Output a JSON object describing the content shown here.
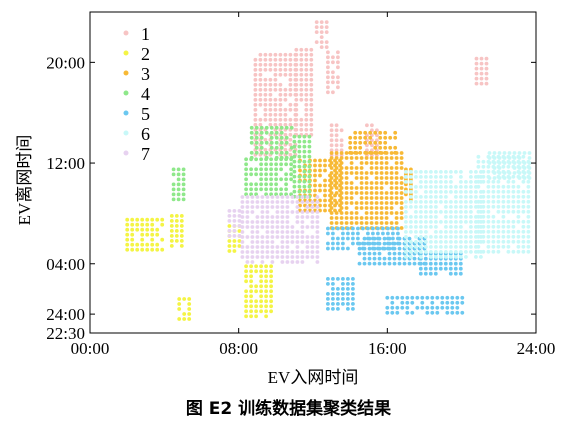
{
  "caption": "图 E2 训练数据集聚类结果",
  "chart_data": {
    "type": "scatter",
    "title": "",
    "xlabel": "EV入网时间",
    "ylabel": "EV离网时间",
    "x_unit": "hours",
    "y_unit": "hours",
    "xlim": [
      0,
      24
    ],
    "ylim": [
      -1.5,
      24
    ],
    "x_ticks": [
      {
        "value": 0,
        "label": "00:00"
      },
      {
        "value": 8,
        "label": "08:00"
      },
      {
        "value": 16,
        "label": "16:00"
      },
      {
        "value": 24,
        "label": "24:00"
      }
    ],
    "y_ticks": [
      {
        "value": 20,
        "label": "20:00"
      },
      {
        "value": 12,
        "label": "12:00"
      },
      {
        "value": 4,
        "label": "04:00"
      },
      {
        "value": 0,
        "label": "24:00"
      },
      {
        "value": -1.5,
        "label": "22:30"
      }
    ],
    "grid": false,
    "legend_position": "top-left",
    "series": [
      {
        "name": "1",
        "color": "#f7c4c4",
        "regions": [
          {
            "x": [
              8.9,
              11.1
            ],
            "y": [
              12.6,
              20.6
            ]
          },
          {
            "x": [
              11.1,
              12.1
            ],
            "y": [
              14.2,
              21.0
            ]
          },
          {
            "x": [
              12.2,
              13.0
            ],
            "y": [
              21.0,
              23.2
            ]
          },
          {
            "x": [
              12.8,
              13.5
            ],
            "y": [
              17.5,
              20.8
            ]
          },
          {
            "x": [
              13.0,
              13.6
            ],
            "y": [
              12.3,
              15.0
            ]
          },
          {
            "x": [
              14.9,
              15.5
            ],
            "y": [
              12.5,
              15.0
            ]
          },
          {
            "x": [
              20.8,
              21.6
            ],
            "y": [
              18.0,
              20.3
            ]
          }
        ]
      },
      {
        "name": "2",
        "color": "#f4f445",
        "regions": [
          {
            "x": [
              2.0,
              3.9
            ],
            "y": [
              4.8,
              7.5
            ]
          },
          {
            "x": [
              4.4,
              5.2
            ],
            "y": [
              5.3,
              7.8
            ]
          },
          {
            "x": [
              4.8,
              5.6
            ],
            "y": [
              -0.4,
              1.2
            ]
          },
          {
            "x": [
              7.5,
              8.2
            ],
            "y": [
              5.0,
              7.0
            ]
          },
          {
            "x": [
              8.4,
              9.8
            ],
            "y": [
              -0.2,
              3.8
            ]
          }
        ]
      },
      {
        "name": "3",
        "color": "#f7b935",
        "regions": [
          {
            "x": [
              11.3,
              13.6
            ],
            "y": [
              8.0,
              12.2
            ]
          },
          {
            "x": [
              13.0,
              17.0
            ],
            "y": [
              6.5,
              12.8
            ]
          },
          {
            "x": [
              14.0,
              16.6
            ],
            "y": [
              12.8,
              14.4
            ]
          },
          {
            "x": [
              17.0,
              17.4
            ],
            "y": [
              9.0,
              11.5
            ]
          }
        ]
      },
      {
        "name": "4",
        "color": "#8ee88a",
        "regions": [
          {
            "x": [
              8.4,
              10.9
            ],
            "y": [
              9.3,
              12.3
            ]
          },
          {
            "x": [
              8.7,
              11.1
            ],
            "y": [
              12.3,
              14.8
            ]
          },
          {
            "x": [
              11.0,
              12.0
            ],
            "y": [
              9.3,
              14.1
            ]
          },
          {
            "x": [
              4.5,
              5.1
            ],
            "y": [
              9.1,
              11.5
            ]
          }
        ]
      },
      {
        "name": "5",
        "color": "#6bc8f0",
        "regions": [
          {
            "x": [
              12.8,
              16.8
            ],
            "y": [
              5.0,
              6.8
            ]
          },
          {
            "x": [
              14.5,
              18.2
            ],
            "y": [
              3.8,
              6.0
            ]
          },
          {
            "x": [
              17.8,
              20.0
            ],
            "y": [
              3.2,
              4.8
            ]
          },
          {
            "x": [
              12.8,
              14.2
            ],
            "y": [
              0.1,
              2.8
            ]
          },
          {
            "x": [
              16.0,
              20.3
            ],
            "y": [
              0.0,
              1.3
            ]
          }
        ]
      },
      {
        "name": "6",
        "color": "#c8f8f8",
        "regions": [
          {
            "x": [
              17.0,
              21.2
            ],
            "y": [
              4.2,
              11.3
            ]
          },
          {
            "x": [
              20.9,
              23.8
            ],
            "y": [
              4.8,
              12.5
            ]
          },
          {
            "x": [
              21.5,
              23.8
            ],
            "y": [
              10.8,
              12.8
            ]
          }
        ]
      },
      {
        "name": "7",
        "color": "#e7d2f0",
        "regions": [
          {
            "x": [
              7.5,
              8.3
            ],
            "y": [
              6.0,
              8.2
            ]
          },
          {
            "x": [
              8.2,
              12.5
            ],
            "y": [
              4.0,
              9.3
            ]
          }
        ]
      }
    ]
  }
}
